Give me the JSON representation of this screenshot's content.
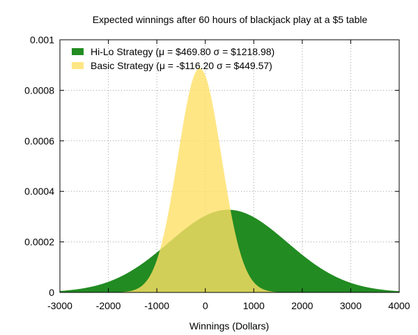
{
  "chart_data": {
    "type": "area",
    "title": "Expected winnings after 60 hours of blackjack play at a $5 table",
    "xlabel": "Winnings (Dollars)",
    "ylabel": "",
    "xlim": [
      -3000,
      4000
    ],
    "ylim": [
      0,
      0.001
    ],
    "x_ticks": [
      -3000,
      -2000,
      -1000,
      0,
      1000,
      2000,
      3000,
      4000
    ],
    "x_tick_labels": [
      "-3000",
      "-2000",
      "-1000",
      "0",
      "1000",
      "2000",
      "3000",
      "4000"
    ],
    "y_ticks": [
      0,
      0.0002,
      0.0004,
      0.0006,
      0.0008,
      0.001
    ],
    "y_tick_labels": [
      "0",
      "0.0002",
      "0.0004",
      "0.0006",
      "0.0008",
      "0.001"
    ],
    "grid": true,
    "legend_position": "top-left",
    "distribution": "normal",
    "series": [
      {
        "name": "Hi-Lo Strategy (μ = $469.80 σ = $1218.98)",
        "mean": 469.8,
        "sd": 1218.98,
        "color": "#228b22"
      },
      {
        "name": "Basic Strategy (μ = -$116.20 σ = $449.57)",
        "mean": -116.2,
        "sd": 449.57,
        "color": "#ffe066",
        "opacity": 0.8
      }
    ]
  }
}
